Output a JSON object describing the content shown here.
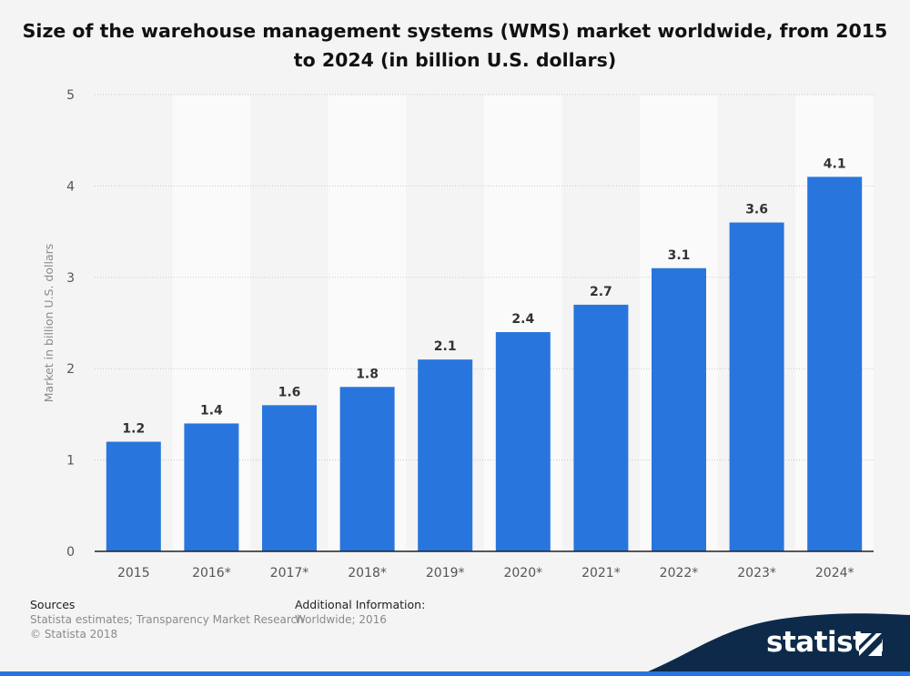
{
  "chart_data": {
    "type": "bar",
    "title": "Size of the warehouse management systems (WMS) market worldwide, from 2015 to 2024 (in billion U.S. dollars)",
    "categories": [
      "2015",
      "2016*",
      "2017*",
      "2018*",
      "2019*",
      "2020*",
      "2021*",
      "2022*",
      "2023*",
      "2024*"
    ],
    "values": [
      1.2,
      1.4,
      1.6,
      1.8,
      2.1,
      2.4,
      2.7,
      3.1,
      3.6,
      4.1
    ],
    "value_labels": [
      "1.2",
      "1.4",
      "1.6",
      "1.8",
      "2.1",
      "2.4",
      "2.7",
      "3.1",
      "3.6",
      "4.1"
    ],
    "xlabel": "",
    "ylabel": "Market in billion U.S. dollars",
    "ylim": [
      0,
      5
    ],
    "yticks": [
      0,
      1,
      2,
      3,
      4,
      5
    ],
    "ytick_labels": [
      "0",
      "1",
      "2",
      "3",
      "4",
      "5"
    ],
    "grid": true,
    "bar_color": "#2876dd"
  },
  "footer": {
    "sources_heading": "Sources",
    "sources_line1": "Statista estimates; Transparency Market Research",
    "sources_line2": "© Statista 2018",
    "additional_heading": "Additional Information:",
    "additional_line1": "Worldwide; 2016"
  },
  "brand": {
    "logo_text": "statista",
    "logo_icon": "statista-flag-icon",
    "dark_color": "#0d2a4a",
    "accent_color": "#2876dd"
  }
}
